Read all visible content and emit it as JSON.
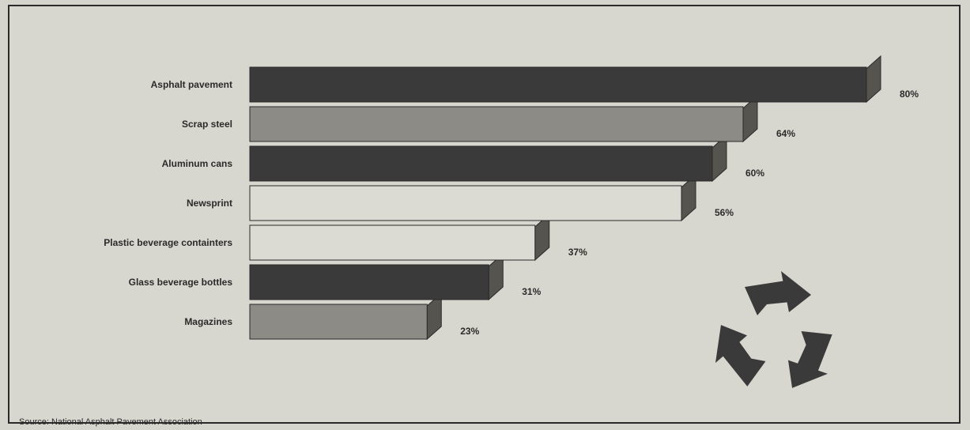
{
  "source": "Source: National Asphalt Pavement Association",
  "colors": {
    "dark": "#3a3a3a",
    "gray": "#8c8b85",
    "light": "#dcdbd3",
    "mid": "#55544f",
    "icon": "#3a3a3a"
  },
  "icon": "recycling-icon",
  "chart_data": {
    "type": "bar",
    "orientation": "horizontal",
    "categories": [
      "Asphalt pavement",
      "Scrap steel",
      "Aluminum cans",
      "Newsprint",
      "Plastic beverage containters",
      "Glass beverage bottles",
      "Magazines"
    ],
    "values": [
      80,
      64,
      60,
      56,
      37,
      31,
      23
    ],
    "value_labels": [
      "80%",
      "64%",
      "60%",
      "56%",
      "37%",
      "31%",
      "23%"
    ],
    "bar_fills": [
      "dark",
      "gray",
      "dark",
      "light",
      "light",
      "dark",
      "gray"
    ],
    "title": "",
    "xlabel": "",
    "ylabel": "",
    "xlim": [
      0,
      80
    ],
    "grid": false,
    "legend": "none"
  }
}
